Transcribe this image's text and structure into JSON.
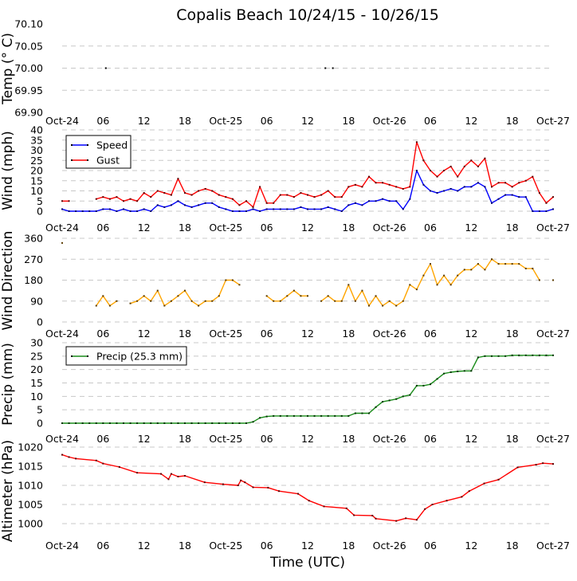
{
  "title": "Copalis Beach 10/24/15 - 10/26/15",
  "xlabel": "Time (UTC)",
  "x_tick_labels": [
    "Oct-24",
    "06",
    "12",
    "18",
    "Oct-25",
    "06",
    "12",
    "18",
    "Oct-26",
    "06",
    "12",
    "18",
    "Oct-27"
  ],
  "colors": {
    "speed": "#0000ff",
    "gust": "#ff0000",
    "direction": "#ffa500",
    "precip": "#1a8c1a",
    "pressure": "#ff0000",
    "marker_dark": "#5a0000",
    "marker_brown": "#5a3a00",
    "marker_green": "#003300"
  },
  "chart_data": [
    {
      "type": "scatter",
      "ylabel": "Temp (° C)",
      "ylim": [
        69.9,
        70.1
      ],
      "y_ticks": [
        "69.90",
        "69.95",
        "70.00",
        "70.05",
        "70.10"
      ],
      "x_unit": "hours since Oct-24 00:00 UTC",
      "xlim": [
        0,
        72
      ],
      "series": [
        {
          "name": "Temp",
          "x": [
            6.4,
            38.6,
            39.7
          ],
          "values": [
            70.0,
            70.0,
            70.0
          ]
        }
      ]
    },
    {
      "type": "line",
      "ylabel": "Wind (mph)",
      "ylim": [
        0,
        40
      ],
      "y_ticks": [
        "0",
        "5",
        "10",
        "15",
        "20",
        "25",
        "30",
        "35",
        "40"
      ],
      "xlim": [
        0,
        72
      ],
      "legend": "top-left",
      "series": [
        {
          "name": "Speed",
          "values": [
            1,
            0,
            0,
            0,
            0,
            0,
            1,
            1,
            0,
            1,
            0,
            0,
            1,
            0,
            3,
            2,
            3,
            5,
            3,
            2,
            3,
            4,
            4,
            2,
            1,
            0,
            0,
            0,
            1,
            0,
            1,
            1,
            1,
            1,
            1,
            2,
            1,
            1,
            1,
            2,
            1,
            0,
            3,
            4,
            3,
            5,
            5,
            6,
            5,
            5,
            1,
            6,
            20,
            13,
            10,
            9,
            10,
            11,
            10,
            12,
            12,
            14,
            12,
            4,
            6,
            8,
            8,
            7,
            7,
            0,
            0,
            0,
            1
          ]
        },
        {
          "name": "Gust",
          "values": [
            5,
            5,
            null,
            null,
            null,
            6,
            7,
            6,
            7,
            5,
            6,
            5,
            9,
            7,
            10,
            9,
            8,
            16,
            9,
            8,
            10,
            11,
            10,
            8,
            7,
            6,
            3,
            5,
            2,
            12,
            4,
            4,
            8,
            8,
            7,
            9,
            8,
            7,
            8,
            10,
            7,
            7,
            12,
            13,
            12,
            17,
            14,
            14,
            13,
            12,
            11,
            12,
            34,
            25,
            20,
            17,
            20,
            22,
            17,
            22,
            25,
            22,
            26,
            12,
            14,
            14,
            12,
            14,
            15,
            17,
            9,
            4,
            7
          ]
        }
      ]
    },
    {
      "type": "line",
      "ylabel": "Wind Direction",
      "ylim": [
        0,
        360
      ],
      "y_ticks": [
        "0",
        "90",
        "180",
        "270",
        "360"
      ],
      "xlim": [
        0,
        72
      ],
      "series": [
        {
          "name": "Direction",
          "values": [
            340,
            null,
            null,
            null,
            null,
            70,
            112,
            70,
            90,
            null,
            80,
            90,
            112,
            90,
            135,
            70,
            90,
            112,
            135,
            90,
            70,
            90,
            90,
            112,
            180,
            180,
            160,
            null,
            null,
            null,
            112,
            90,
            90,
            112,
            135,
            112,
            112,
            null,
            90,
            112,
            90,
            90,
            160,
            90,
            135,
            70,
            112,
            70,
            90,
            70,
            90,
            160,
            140,
            200,
            250,
            160,
            200,
            160,
            200,
            225,
            225,
            250,
            225,
            270,
            250,
            250,
            250,
            250,
            230,
            230,
            180,
            null,
            180
          ]
        }
      ]
    },
    {
      "type": "line",
      "ylabel": "Precip (mm)",
      "ylim": [
        0,
        30
      ],
      "y_ticks": [
        "0",
        "5",
        "10",
        "15",
        "20",
        "25",
        "30"
      ],
      "xlim": [
        0,
        72
      ],
      "legend": "top-left",
      "series": [
        {
          "name": "Precip (25.3 mm)",
          "values": [
            0,
            0,
            0,
            0,
            0,
            0,
            0,
            0,
            0,
            0,
            0,
            0,
            0,
            0,
            0,
            0,
            0,
            0,
            0,
            0,
            0,
            0,
            0,
            0,
            0,
            0,
            0,
            0,
            0.5,
            2,
            2.5,
            2.7,
            2.7,
            2.7,
            2.7,
            2.7,
            2.7,
            2.7,
            2.7,
            2.7,
            2.7,
            2.7,
            2.7,
            3.7,
            3.7,
            3.7,
            6,
            8,
            8.5,
            9,
            10,
            10.5,
            14,
            14,
            14.5,
            16.5,
            18.5,
            19,
            19.3,
            19.5,
            19.5,
            24.5,
            25,
            25,
            25,
            25,
            25.3,
            25.3,
            25.3,
            25.3,
            25.3,
            25.3,
            25.3
          ]
        }
      ]
    },
    {
      "type": "line",
      "ylabel": "Altimeter (hPa)",
      "ylim": [
        997,
        1020
      ],
      "y_ticks": [
        "1000",
        "1005",
        "1010",
        "1015",
        "1020"
      ],
      "xlim": [
        0,
        72
      ],
      "series": [
        {
          "name": "Altimeter",
          "x": [
            0,
            1,
            2,
            5,
            6,
            8.4,
            11,
            14.5,
            15.6,
            16,
            17,
            18,
            20.9,
            23.6,
            25.8,
            26.2,
            26.8,
            28,
            30.2,
            31.8,
            34.6,
            36.2,
            38.4,
            41.7,
            42.8,
            45.5,
            46,
            49,
            50.4,
            52,
            53.2,
            54.3,
            56.4,
            58.6,
            59.7,
            61.9,
            64,
            66.8,
            69.5,
            70.5,
            72
          ],
          "values": [
            1018,
            1017.4,
            1017,
            1016.5,
            1015.7,
            1014.8,
            1013.3,
            1013,
            1011.6,
            1013,
            1012.3,
            1012.5,
            1010.8,
            1010.3,
            1010,
            1011.3,
            1010.8,
            1009.5,
            1009.4,
            1008.5,
            1007.8,
            1006,
            1004.5,
            1004,
            1002.2,
            1002.1,
            1001.3,
            1000.7,
            1001.4,
            1001,
            1003.8,
            1005,
            1006,
            1007,
            1008.5,
            1010.5,
            1011.5,
            1014.7,
            1015.4,
            1015.8,
            1015.6
          ]
        }
      ]
    }
  ]
}
